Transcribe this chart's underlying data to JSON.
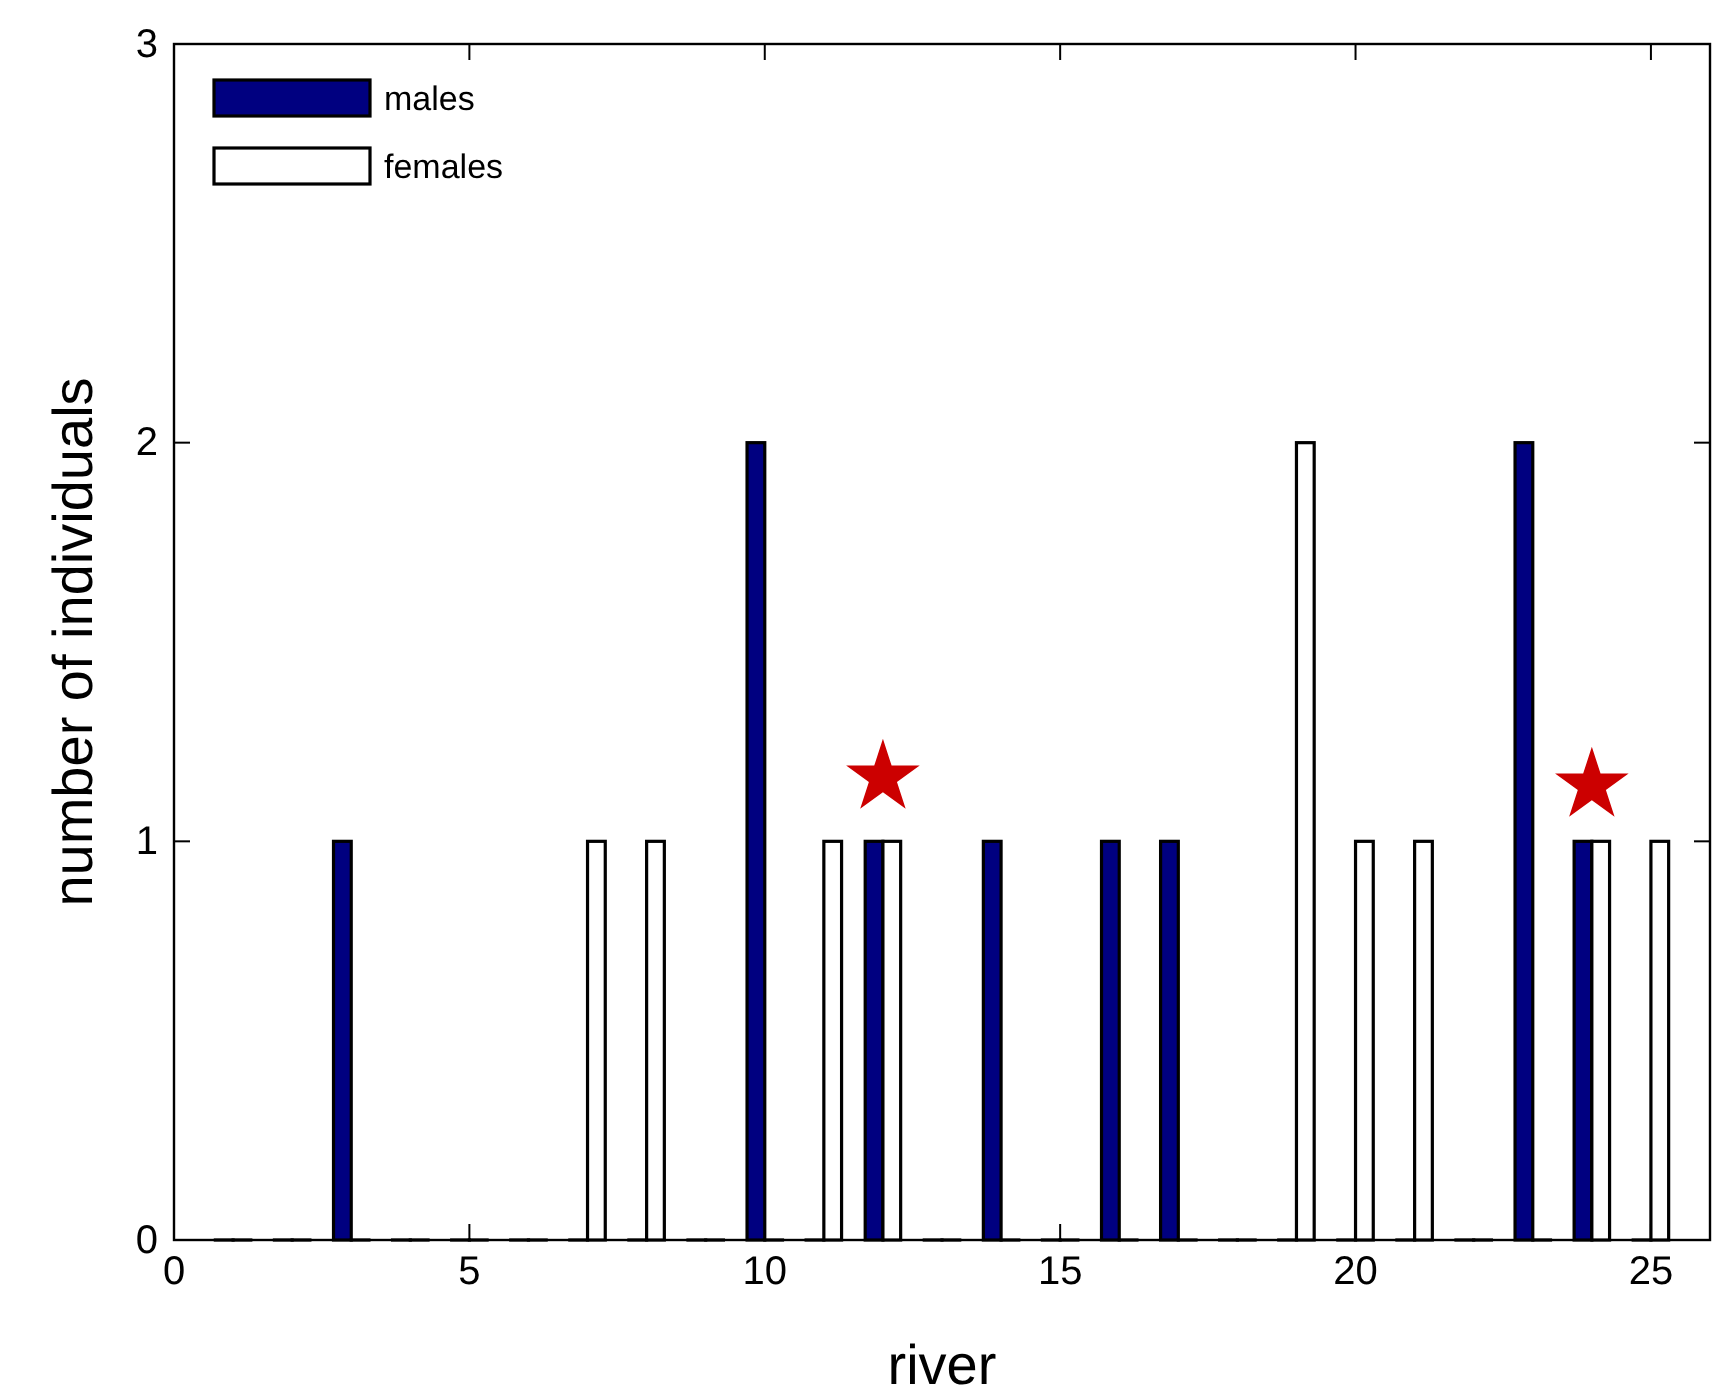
{
  "chart_data": {
    "type": "bar",
    "xlabel": "river",
    "ylabel": "number of individuals",
    "x": [
      1,
      2,
      3,
      4,
      5,
      6,
      7,
      8,
      9,
      10,
      11,
      12,
      13,
      14,
      15,
      16,
      17,
      18,
      19,
      20,
      21,
      22,
      23,
      24,
      25
    ],
    "series": [
      {
        "name": "males",
        "color": "#000080",
        "values": [
          0,
          0,
          1,
          0,
          0,
          0,
          0,
          0,
          0,
          2,
          0,
          1,
          0,
          1,
          0,
          1,
          1,
          0,
          0,
          0,
          0,
          0,
          2,
          1,
          0
        ]
      },
      {
        "name": "females",
        "color": "#ffffff",
        "values": [
          0,
          0,
          0,
          0,
          0,
          0,
          1,
          1,
          0,
          0,
          1,
          1,
          0,
          0,
          0,
          0,
          0,
          0,
          2,
          1,
          1,
          0,
          0,
          1,
          1
        ]
      }
    ],
    "xlim": [
      0,
      26
    ],
    "xticks": [
      0,
      5,
      10,
      15,
      20,
      25
    ],
    "ylim": [
      0,
      3
    ],
    "yticks": [
      0,
      1,
      2,
      3
    ],
    "legend": "top left"
  }
}
